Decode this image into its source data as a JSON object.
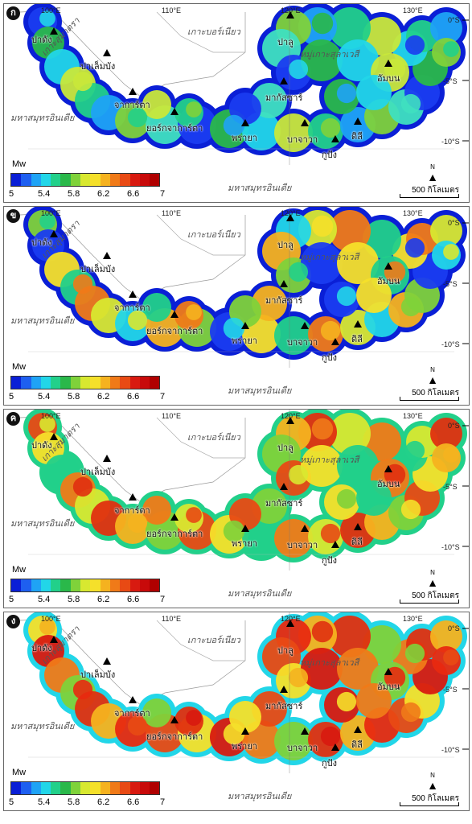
{
  "panels": [
    {
      "id": "a",
      "badge": "ก",
      "mw": "Mw",
      "theme": "low"
    },
    {
      "id": "b",
      "badge": "ข",
      "mw": "Mw",
      "theme": "mid"
    },
    {
      "id": "c",
      "badge": "ค",
      "mw": "Mw",
      "theme": "high"
    },
    {
      "id": "d",
      "badge": "ง",
      "mw": "Mw",
      "theme": "vhigh"
    }
  ],
  "labels": {
    "lon100": "100°E",
    "lon110": "110°E",
    "lon120": "120°E",
    "lon130": "130°E",
    "lat0": "0°S",
    "lat5": "-5°S",
    "lat10": "-10°S",
    "sumatra": "เกาะสุมาตรา",
    "borneo": "เกาะบอร์เนียว",
    "sulawesi": "หมู่เกาะสุลาเวสี",
    "indian_ocean": "มหาสมุทรอินเดีย",
    "scale": "500 กิโลเมตร",
    "north": "N"
  },
  "places": {
    "padang": "ปาดัง",
    "palembang": "ปาเล็มบัง",
    "jakarta": "จาการ์ตา",
    "yogyakarta": "ยอร์กจาการ์ตา",
    "surabaya": "พรายา",
    "bali": "บาจาวา",
    "kupang": "กูปัง",
    "dili": "ดิลี",
    "makassar": "มากัสซาร์",
    "palu": "ปาลู",
    "ambon": "อัมบน"
  },
  "legend": {
    "ticks": [
      "5",
      "5.4",
      "5.8",
      "6.2",
      "6.6",
      "7"
    ],
    "colors": [
      "#0a1fd6",
      "#1e5ff0",
      "#1fa3f5",
      "#22d6e8",
      "#22d08a",
      "#2ab84a",
      "#7fd23a",
      "#d8e830",
      "#f5e02a",
      "#f5b21f",
      "#f07a18",
      "#e84a14",
      "#d81a10",
      "#c80a0a",
      "#b00000"
    ]
  }
}
